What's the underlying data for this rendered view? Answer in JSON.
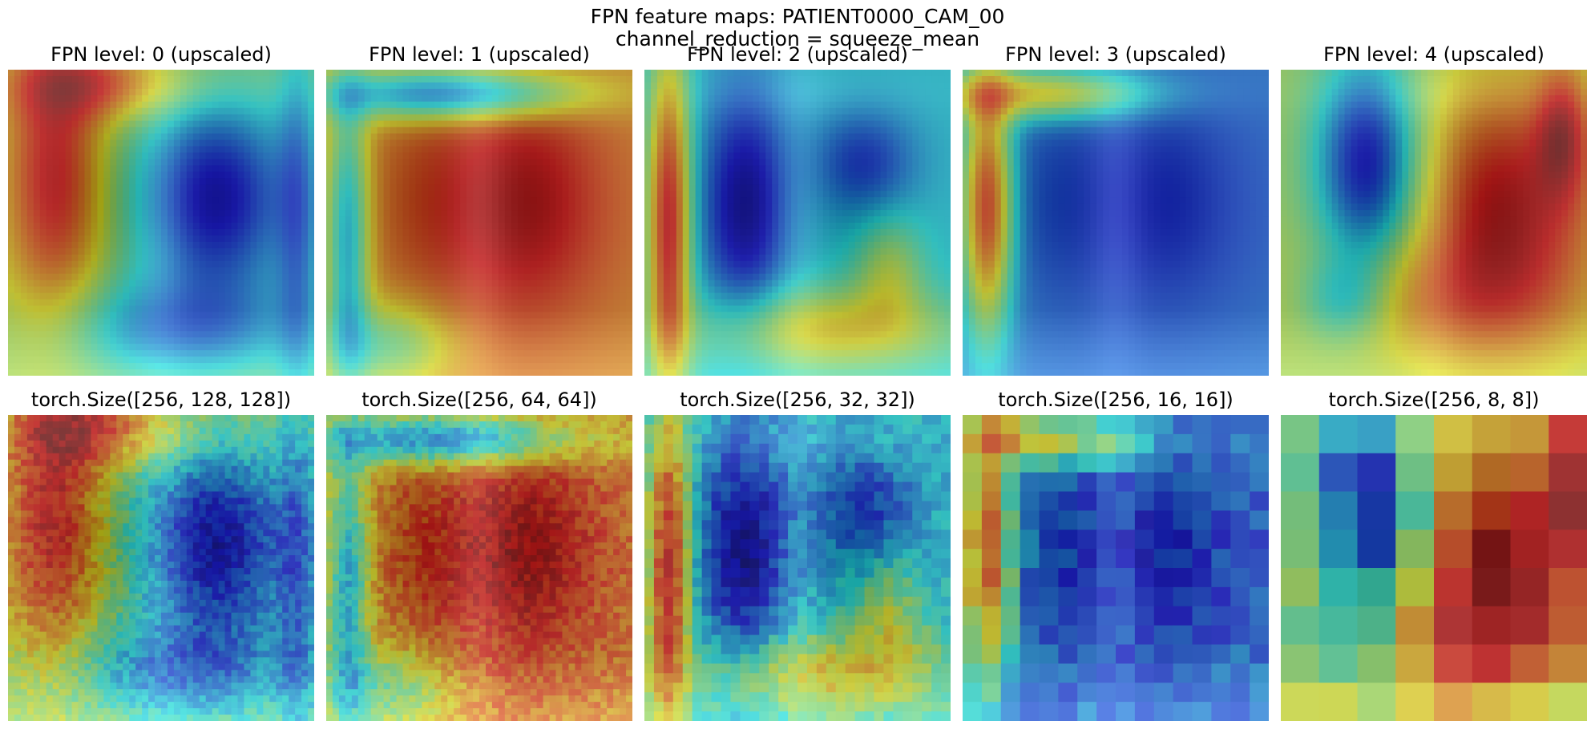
{
  "figure": {
    "suptitle_line1": "FPN feature maps: PATIENT0000_CAM_00",
    "suptitle_line2": "channel_reduction = squeeze_mean"
  },
  "rows": [
    {
      "panels": [
        {
          "title": "FPN level: 0 (upscaled)",
          "grid": 128,
          "upscaled": true
        },
        {
          "title": "FPN level: 1 (upscaled)",
          "grid": 64,
          "upscaled": true
        },
        {
          "title": "FPN level: 2 (upscaled)",
          "grid": 32,
          "upscaled": true
        },
        {
          "title": "FPN level: 3 (upscaled)",
          "grid": 16,
          "upscaled": true
        },
        {
          "title": "FPN level: 4 (upscaled)",
          "grid": 8,
          "upscaled": true
        }
      ]
    },
    {
      "panels": [
        {
          "title": "torch.Size([256, 128, 128])",
          "grid": 128,
          "upscaled": false
        },
        {
          "title": "torch.Size([256, 64, 64])",
          "grid": 64,
          "upscaled": false
        },
        {
          "title": "torch.Size([256, 32, 32])",
          "grid": 32,
          "upscaled": false
        },
        {
          "title": "torch.Size([256, 16, 16])",
          "grid": 16,
          "upscaled": false
        },
        {
          "title": "torch.Size([256, 8, 8])",
          "grid": 8,
          "upscaled": false
        }
      ]
    }
  ],
  "colormap": "jet",
  "overlay": "chest-x-ray"
}
